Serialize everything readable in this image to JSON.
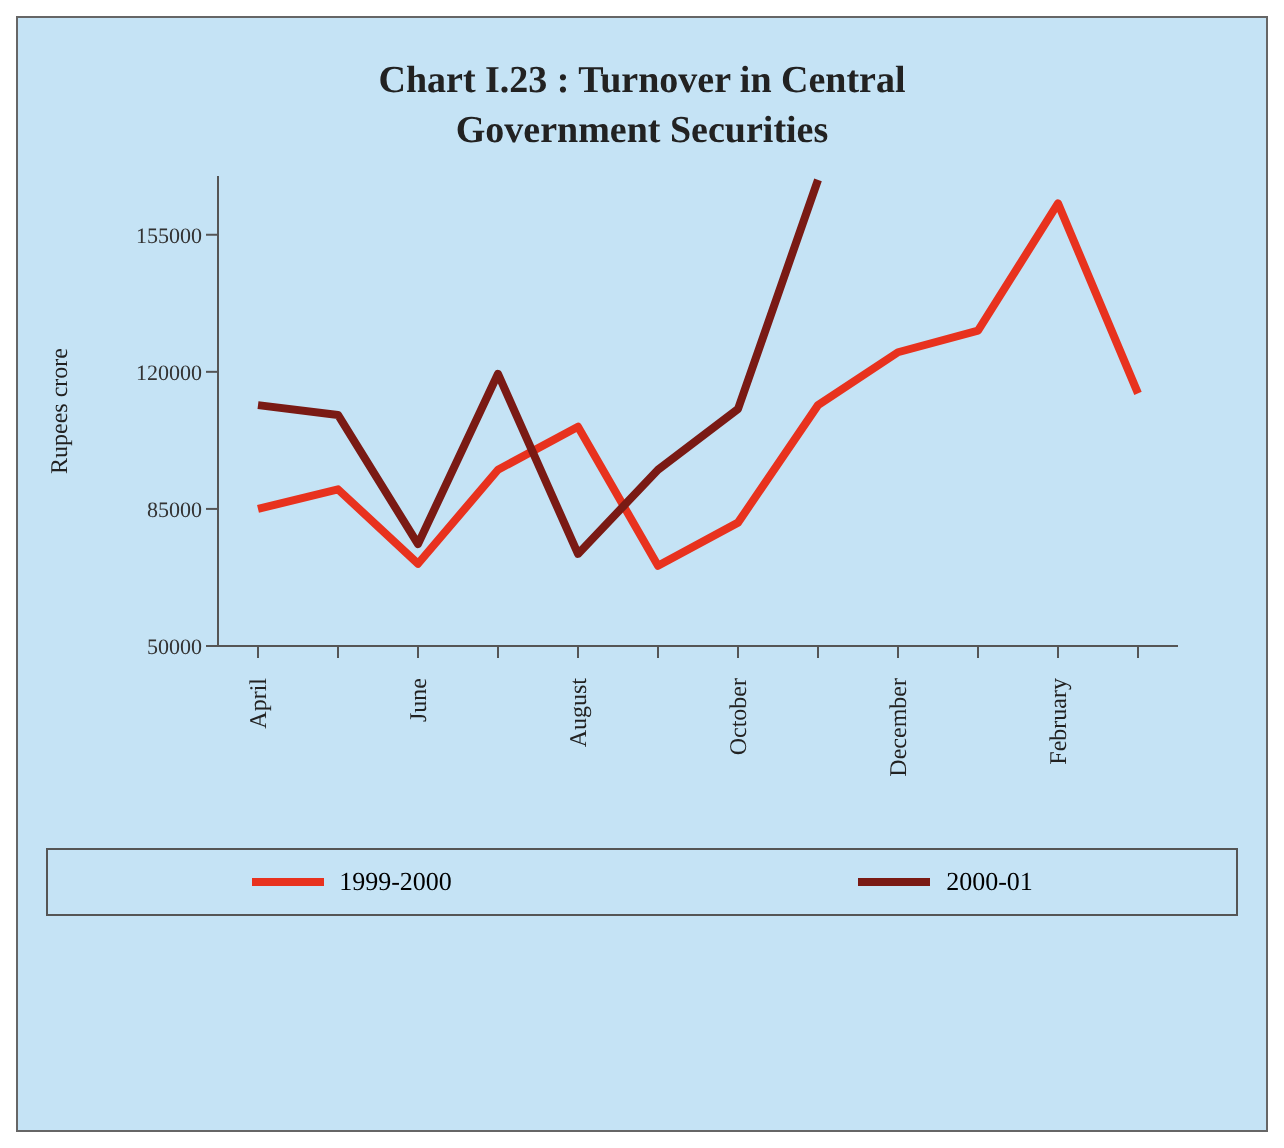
{
  "chart_data": {
    "type": "line",
    "title": "Chart I.23 : Turnover in Central Government Securities",
    "ylabel": "Rupees crore",
    "categories": [
      "April",
      null,
      "June",
      null,
      "August",
      null,
      "October",
      null,
      "December",
      null,
      "February",
      null
    ],
    "series": [
      {
        "name": "1999-2000",
        "color": "#e8321e",
        "values": [
          85000,
          90000,
          71000,
          95000,
          106000,
          70500,
          81500,
          111500,
          125000,
          130500,
          163000,
          114500
        ]
      },
      {
        "name": "2000-01",
        "color": "#7a1a14",
        "values": [
          111500,
          109000,
          76000,
          119500,
          73500,
          95000,
          110500,
          169000,
          null,
          null,
          null,
          null
        ]
      }
    ],
    "ylim": [
      50000,
      170000
    ],
    "yticks": [
      50000,
      85000,
      120000,
      155000
    ],
    "grid": false,
    "legend": "bottom",
    "marker": "none",
    "line_style": "solid"
  }
}
